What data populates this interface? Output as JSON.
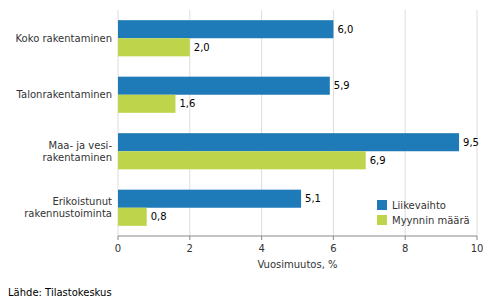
{
  "chart_data": {
    "type": "bar",
    "orientation": "horizontal",
    "categories": [
      "Erikoistunut\nrakennustoiminta",
      "Maa- ja vesi-\nrakentaminen",
      "Talonrakentaminen",
      "Koko rakentaminen"
    ],
    "series": [
      {
        "name": "Liikevaihto",
        "color": "#1f7bb8",
        "values": [
          5.1,
          9.5,
          5.9,
          6.0
        ],
        "value_labels": [
          "5,1",
          "9,5",
          "5,9",
          "6,0"
        ]
      },
      {
        "name": "Myynnin määrä",
        "color": "#bed44a",
        "values": [
          0.8,
          6.9,
          1.6,
          2.0
        ],
        "value_labels": [
          "0,8",
          "6,9",
          "1,6",
          "2,0"
        ]
      }
    ],
    "xlabel": "Vuosimuutos, %",
    "xlim": [
      0,
      10
    ],
    "xticks": [
      0,
      2,
      4,
      6,
      8,
      10
    ],
    "grid": true,
    "legend": "lower right",
    "data_labels": true,
    "annotations": [
      "Lähde: Tilastokeskus"
    ]
  }
}
